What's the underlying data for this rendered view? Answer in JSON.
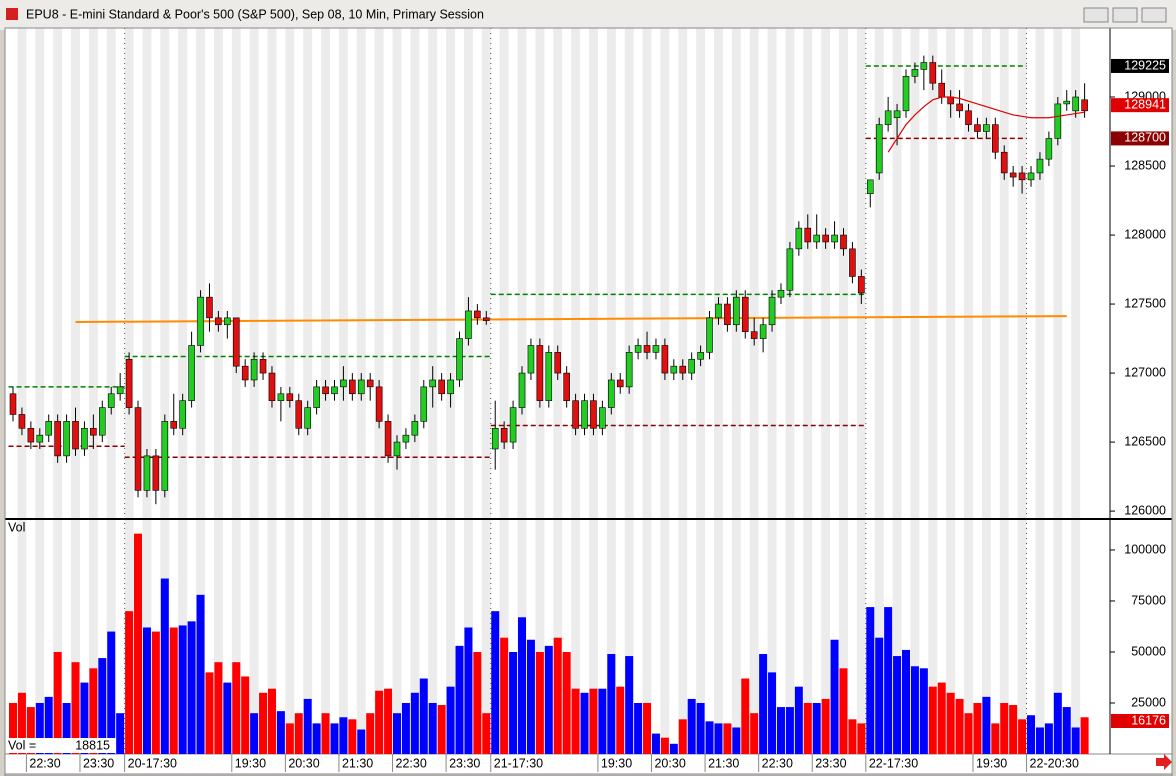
{
  "chart_data": {
    "type": "candlestick",
    "title": "EPU8 - E-mini Standard & Poor's 500 (S&P 500), Sep 08, 10 Min, Primary Session",
    "categories": [
      null,
      null,
      "22:30",
      null,
      null,
      null,
      null,
      null,
      "23:30",
      null,
      null,
      null,
      null,
      "20-17:30",
      null,
      null,
      null,
      null,
      null,
      null,
      null,
      null,
      null,
      null,
      null,
      "19:30",
      null,
      null,
      null,
      null,
      null,
      "20:30",
      null,
      null,
      null,
      null,
      null,
      "21:30",
      null,
      null,
      null,
      null,
      null,
      "22:30",
      null,
      null,
      null,
      null,
      null,
      "23:30",
      null,
      null,
      null,
      null,
      "21-17:30",
      null,
      null,
      null,
      null,
      null,
      null,
      null,
      null,
      null,
      null,
      null,
      "19:30",
      null,
      null,
      null,
      null,
      null,
      "20:30",
      null,
      null,
      null,
      null,
      null,
      "21:30",
      null,
      null,
      null,
      null,
      null,
      "22:30",
      null,
      null,
      null,
      null,
      null,
      "23:30",
      null,
      null,
      null,
      null,
      null,
      "22-17:30",
      null,
      null,
      null,
      null,
      null,
      null,
      null,
      null,
      null,
      null,
      null,
      "19:30",
      null,
      null,
      null,
      null,
      null,
      "22-20:30",
      null,
      null,
      null,
      null,
      null,
      null
    ],
    "candles": [
      [
        126850,
        126900,
        126650,
        126700
      ],
      [
        126700,
        126750,
        126550,
        126600
      ],
      [
        126600,
        126650,
        126450,
        126500
      ],
      [
        126500,
        126600,
        126450,
        126550
      ],
      [
        126550,
        126700,
        126500,
        126650
      ],
      [
        126650,
        126700,
        126350,
        126400
      ],
      [
        126400,
        126700,
        126350,
        126650
      ],
      [
        126650,
        126750,
        126400,
        126450
      ],
      [
        126450,
        126650,
        126400,
        126600
      ],
      [
        126600,
        126700,
        126450,
        126550
      ],
      [
        126550,
        126800,
        126500,
        126750
      ],
      [
        126750,
        126900,
        126700,
        126850
      ],
      [
        126850,
        127000,
        126800,
        126900
      ],
      [
        127100,
        127150,
        126700,
        126750
      ],
      [
        126750,
        126800,
        126100,
        126150
      ],
      [
        126150,
        126450,
        126100,
        126400
      ],
      [
        126400,
        126450,
        126050,
        126150
      ],
      [
        126150,
        126700,
        126100,
        126650
      ],
      [
        126650,
        126850,
        126550,
        126600
      ],
      [
        126600,
        126850,
        126550,
        126800
      ],
      [
        126800,
        127300,
        126750,
        127200
      ],
      [
        127200,
        127600,
        127150,
        127550
      ],
      [
        127550,
        127650,
        127300,
        127400
      ],
      [
        127400,
        127450,
        127300,
        127350
      ],
      [
        127350,
        127450,
        127250,
        127400
      ],
      [
        127400,
        127400,
        127000,
        127050
      ],
      [
        127050,
        127100,
        126900,
        126950
      ],
      [
        126950,
        127150,
        126900,
        127100
      ],
      [
        127100,
        127150,
        126950,
        127000
      ],
      [
        127000,
        127050,
        126750,
        126800
      ],
      [
        126800,
        126900,
        126650,
        126850
      ],
      [
        126850,
        126900,
        126750,
        126800
      ],
      [
        126800,
        126850,
        126550,
        126600
      ],
      [
        126600,
        126800,
        126550,
        126750
      ],
      [
        126750,
        126950,
        126700,
        126900
      ],
      [
        126900,
        126950,
        126800,
        126850
      ],
      [
        126850,
        126950,
        126800,
        126900
      ],
      [
        126900,
        127050,
        126800,
        126950
      ],
      [
        126950,
        127000,
        126800,
        126850
      ],
      [
        126850,
        127000,
        126800,
        126950
      ],
      [
        126950,
        127000,
        126800,
        126900
      ],
      [
        126900,
        126950,
        126600,
        126650
      ],
      [
        126650,
        126700,
        126350,
        126400
      ],
      [
        126400,
        126550,
        126300,
        126500
      ],
      [
        126500,
        126600,
        126450,
        126550
      ],
      [
        126550,
        126700,
        126500,
        126650
      ],
      [
        126650,
        126950,
        126600,
        126900
      ],
      [
        126900,
        127050,
        126750,
        126950
      ],
      [
        126950,
        127000,
        126800,
        126850
      ],
      [
        126850,
        127000,
        126750,
        126950
      ],
      [
        126950,
        127300,
        126900,
        127250
      ],
      [
        127250,
        127550,
        127200,
        127450
      ],
      [
        127450,
        127500,
        127350,
        127400
      ],
      [
        127400,
        127450,
        127350,
        127380
      ],
      [
        126450,
        126800,
        126300,
        126600
      ],
      [
        126600,
        126650,
        126450,
        126500
      ],
      [
        126500,
        126800,
        126450,
        126750
      ],
      [
        126750,
        127050,
        126700,
        127000
      ],
      [
        127000,
        127250,
        126950,
        127200
      ],
      [
        127200,
        127250,
        126750,
        126800
      ],
      [
        126800,
        127200,
        126750,
        127150
      ],
      [
        127150,
        127200,
        126950,
        127000
      ],
      [
        127000,
        127050,
        126750,
        126800
      ],
      [
        126800,
        126850,
        126550,
        126600
      ],
      [
        126600,
        126850,
        126550,
        126800
      ],
      [
        126800,
        126850,
        126550,
        126600
      ],
      [
        126600,
        126800,
        126550,
        126750
      ],
      [
        126750,
        127000,
        126700,
        126950
      ],
      [
        126950,
        127000,
        126850,
        126900
      ],
      [
        126900,
        127200,
        126850,
        127150
      ],
      [
        127150,
        127250,
        127100,
        127200
      ],
      [
        127200,
        127300,
        127100,
        127150
      ],
      [
        127150,
        127250,
        127100,
        127200
      ],
      [
        127200,
        127250,
        126950,
        127000
      ],
      [
        127000,
        127100,
        126950,
        127050
      ],
      [
        127050,
        127100,
        126950,
        127000
      ],
      [
        127000,
        127150,
        126950,
        127100
      ],
      [
        127100,
        127200,
        127050,
        127150
      ],
      [
        127150,
        127450,
        127100,
        127400
      ],
      [
        127400,
        127550,
        127350,
        127500
      ],
      [
        127500,
        127550,
        127300,
        127350
      ],
      [
        127350,
        127600,
        127300,
        127550
      ],
      [
        127550,
        127600,
        127250,
        127300
      ],
      [
        127300,
        127400,
        127200,
        127250
      ],
      [
        127250,
        127400,
        127150,
        127350
      ],
      [
        127350,
        127600,
        127300,
        127550
      ],
      [
        127550,
        127650,
        127500,
        127600
      ],
      [
        127600,
        127950,
        127550,
        127900
      ],
      [
        127900,
        128100,
        127850,
        128050
      ],
      [
        128050,
        128150,
        127900,
        127950
      ],
      [
        127950,
        128150,
        127900,
        128000
      ],
      [
        128000,
        128050,
        127900,
        127950
      ],
      [
        127950,
        128100,
        127900,
        128000
      ],
      [
        128000,
        128050,
        127850,
        127900
      ],
      [
        127900,
        127950,
        127650,
        127700
      ],
      [
        127700,
        127750,
        127500,
        127580
      ],
      [
        128300,
        128400,
        128200,
        128400
      ],
      [
        128450,
        128850,
        128400,
        128800
      ],
      [
        128800,
        129000,
        128750,
        128900
      ],
      [
        128850,
        128950,
        128650,
        128900
      ],
      [
        128900,
        129200,
        128850,
        129150
      ],
      [
        129150,
        129250,
        129100,
        129200
      ],
      [
        129200,
        129300,
        129050,
        129250
      ],
      [
        129250,
        129300,
        129050,
        129100
      ],
      [
        129100,
        129200,
        128950,
        129000
      ],
      [
        129000,
        129050,
        128850,
        128950
      ],
      [
        128950,
        129050,
        128850,
        128900
      ],
      [
        128900,
        128950,
        128750,
        128800
      ],
      [
        128800,
        128850,
        128700,
        128750
      ],
      [
        128750,
        128850,
        128700,
        128800
      ],
      [
        128800,
        128850,
        128550,
        128600
      ],
      [
        128600,
        128650,
        128400,
        128450
      ],
      [
        128450,
        128500,
        128350,
        128420
      ],
      [
        128450,
        128500,
        128300,
        128400
      ],
      [
        128400,
        128500,
        128350,
        128450
      ],
      [
        128450,
        128600,
        128400,
        128550
      ],
      [
        128550,
        128750,
        128500,
        128700
      ],
      [
        128700,
        129000,
        128650,
        128950
      ],
      [
        128950,
        129050,
        128900,
        128970
      ],
      [
        128900,
        129050,
        128850,
        129000
      ],
      [
        128980,
        129100,
        128850,
        128900
      ]
    ],
    "up_color": "#22cc22",
    "down_color": "#e01010",
    "ylim": [
      125950,
      129500
    ],
    "yticks": [
      129000,
      128500,
      128000,
      127500,
      127000,
      126500,
      126000
    ],
    "sessions": [
      {
        "high": 126900,
        "low": 126470
      },
      {
        "high": 127120,
        "low": 126390
      },
      {
        "high": 127570,
        "low": 126620
      },
      {
        "high": 129225,
        "low": 128700
      }
    ],
    "high_color": "#008000",
    "low_color": "#8b0000",
    "trend_line": {
      "color": "#ff8c00",
      "from": [
        7,
        127370
      ],
      "to": [
        118,
        127413
      ]
    },
    "moving_average": {
      "color": "#e00000",
      "values": [
        null,
        null,
        null,
        null,
        null,
        null,
        null,
        null,
        null,
        null,
        null,
        null,
        null,
        null,
        null,
        null,
        null,
        null,
        null,
        null,
        null,
        null,
        null,
        null,
        null,
        null,
        null,
        null,
        null,
        null,
        null,
        null,
        null,
        null,
        null,
        null,
        null,
        null,
        null,
        null,
        null,
        null,
        null,
        null,
        null,
        null,
        null,
        null,
        null,
        null,
        null,
        null,
        null,
        null,
        null,
        null,
        null,
        null,
        null,
        null,
        null,
        null,
        null,
        null,
        null,
        null,
        null,
        null,
        null,
        null,
        null,
        null,
        null,
        null,
        null,
        null,
        null,
        null,
        null,
        null,
        null,
        null,
        null,
        null,
        null,
        null,
        null,
        null,
        null,
        null,
        null,
        null,
        null,
        null,
        null,
        null,
        null,
        null,
        128600,
        128700,
        128800,
        128870,
        128930,
        128980,
        129000,
        129000,
        128990,
        128970,
        128950,
        128930,
        128910,
        128890,
        128870,
        128860,
        128850,
        128850,
        128850,
        128860,
        128870,
        128880,
        128890
      ]
    },
    "price_labels": [
      {
        "value": 129225,
        "color": "#000000"
      },
      {
        "value": 128941,
        "color": "#e00000"
      },
      {
        "value": 128700,
        "color": "#8b0000"
      }
    ],
    "volume": {
      "label": "Vol",
      "up_color": "#0000ff",
      "down_color": "#ff0000",
      "values": [
        25000,
        30000,
        23000,
        25000,
        28000,
        50000,
        25000,
        45000,
        35000,
        42000,
        47000,
        60000,
        20000,
        70000,
        108000,
        62000,
        60000,
        86000,
        62000,
        63000,
        65000,
        78000,
        40000,
        45000,
        35000,
        45000,
        38000,
        20000,
        30000,
        32000,
        21000,
        15000,
        20000,
        27000,
        15000,
        20000,
        15000,
        18000,
        17000,
        12000,
        20000,
        31000,
        32000,
        20000,
        25000,
        30000,
        37000,
        25000,
        24000,
        33000,
        53000,
        62000,
        50000,
        20000,
        70000,
        57000,
        50000,
        67000,
        56000,
        50000,
        53000,
        57000,
        50000,
        32000,
        30000,
        32000,
        32000,
        49000,
        33000,
        48000,
        25000,
        25000,
        10000,
        8000,
        5000,
        17000,
        27000,
        25000,
        16000,
        15000,
        15000,
        13000,
        37000,
        20000,
        49000,
        40000,
        23000,
        23000,
        33000,
        25000,
        25000,
        27000,
        56000,
        42000,
        17000,
        15000,
        72000,
        57000,
        72000,
        48000,
        51000,
        43000,
        42000,
        33000,
        35000,
        30000,
        27000,
        20000,
        25000,
        28000,
        15000,
        25000,
        24000,
        17000,
        19000,
        13000,
        15000,
        30000,
        23000,
        13000,
        18000
      ],
      "ylim": [
        0,
        113700
      ],
      "yticks": [
        100000,
        75000,
        50000,
        25000
      ],
      "last_label": {
        "value": 16176,
        "color": "#e00000"
      },
      "readout": {
        "label": "Vol =",
        "value": 18815
      }
    }
  }
}
